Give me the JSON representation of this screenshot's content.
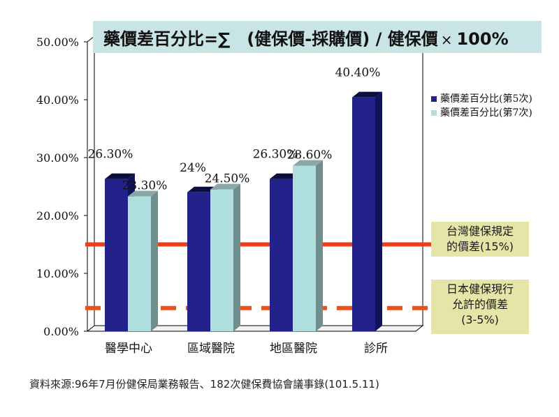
{
  "formula": {
    "text": "藥價差百分比=∑　(健保價-採購價) / 健保價",
    "multiply": "×",
    "percent": "100%"
  },
  "chart_data": {
    "type": "bar",
    "categories": [
      "醫學中心",
      "區域醫院",
      "地區醫院",
      "診所"
    ],
    "series": [
      {
        "name": "藥價差百分比(第5次)",
        "values": [
          26.3,
          24.0,
          26.3,
          40.4
        ],
        "labels": [
          "26.30%",
          "24%",
          "26.30%",
          "40.40%"
        ],
        "color": "#22228a"
      },
      {
        "name": "藥價差百分比(第7次)",
        "values": [
          23.3,
          24.5,
          28.6,
          null
        ],
        "labels": [
          "23.30%",
          "24.50%",
          "28.60%",
          ""
        ],
        "color": "#aedede"
      }
    ],
    "ylim": [
      0,
      50
    ],
    "yticks": [
      "0.00%",
      "10.00%",
      "20.00%",
      "30.00%",
      "40.00%",
      "50.00%"
    ],
    "reference_lines": [
      {
        "value": 15,
        "style": "solid",
        "color": "#e8401c",
        "label_lines": [
          "台灣健保規定",
          "的價差(15%)"
        ]
      },
      {
        "value": 4,
        "style": "dashed",
        "color": "#e8501c",
        "label_lines": [
          "日本健保現行",
          "允許的價差",
          "(3-5%)"
        ]
      }
    ],
    "legend_position": "right"
  },
  "source": "資料來源:96年7月份健保局業務報告、182次健保費協會議事錄(101.5.11)"
}
